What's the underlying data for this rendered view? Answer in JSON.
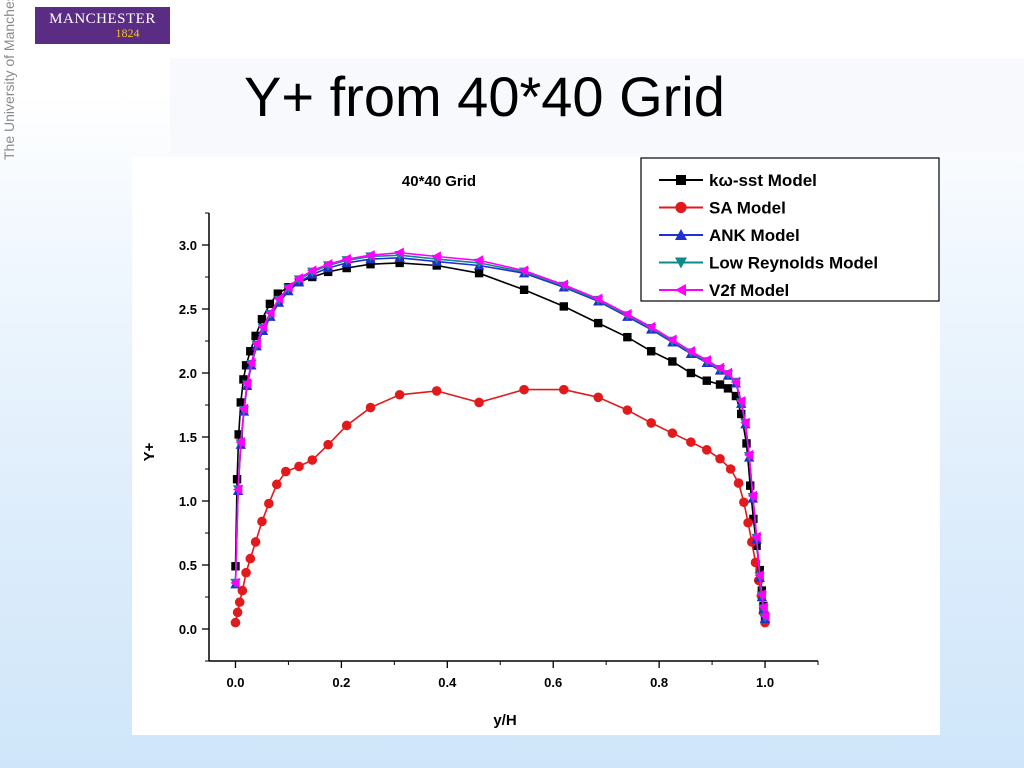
{
  "logo": {
    "name": "MANCHESTER",
    "year": "1824"
  },
  "sidebar_text": "The University of Manchester",
  "slide_title": "Y+ from 40*40 Grid",
  "chart_data": {
    "type": "line",
    "title": "40*40 Grid",
    "xlabel": "y/H",
    "ylabel": "Y+",
    "xlim": [
      -0.05,
      1.1
    ],
    "ylim": [
      -0.25,
      3.25
    ],
    "xticks": [
      "0.0",
      "0.2",
      "0.4",
      "0.6",
      "0.8",
      "1.0"
    ],
    "yticks": [
      "0.0",
      "0.5",
      "1.0",
      "1.5",
      "2.0",
      "2.5",
      "3.0"
    ],
    "legend_position": "top-right",
    "series": [
      {
        "name": "kω-sst Model",
        "color": "#000000",
        "marker": "square",
        "x": [
          0.0,
          0.003,
          0.006,
          0.01,
          0.015,
          0.02,
          0.028,
          0.038,
          0.05,
          0.065,
          0.08,
          0.1,
          0.12,
          0.145,
          0.175,
          0.21,
          0.255,
          0.31,
          0.38,
          0.46,
          0.545,
          0.62,
          0.685,
          0.74,
          0.785,
          0.825,
          0.86,
          0.89,
          0.915,
          0.93,
          0.945,
          0.955,
          0.965,
          0.972,
          0.978,
          0.984,
          0.99,
          0.994,
          0.997,
          1.0
        ],
        "y": [
          0.49,
          1.17,
          1.52,
          1.77,
          1.95,
          2.06,
          2.17,
          2.29,
          2.42,
          2.54,
          2.62,
          2.67,
          2.71,
          2.75,
          2.79,
          2.82,
          2.85,
          2.86,
          2.84,
          2.78,
          2.65,
          2.52,
          2.39,
          2.28,
          2.17,
          2.09,
          2.0,
          1.94,
          1.91,
          1.88,
          1.82,
          1.68,
          1.45,
          1.12,
          0.86,
          0.65,
          0.46,
          0.3,
          0.18,
          0.09
        ]
      },
      {
        "name": "SA Model",
        "color": "#e31a1c",
        "marker": "circle",
        "x": [
          0.0,
          0.004,
          0.008,
          0.013,
          0.02,
          0.028,
          0.038,
          0.05,
          0.063,
          0.078,
          0.095,
          0.12,
          0.145,
          0.175,
          0.21,
          0.255,
          0.31,
          0.38,
          0.46,
          0.545,
          0.62,
          0.685,
          0.74,
          0.785,
          0.825,
          0.86,
          0.89,
          0.915,
          0.935,
          0.95,
          0.96,
          0.968,
          0.975,
          0.982,
          0.988,
          0.993,
          0.997,
          1.0
        ],
        "y": [
          0.05,
          0.13,
          0.21,
          0.3,
          0.44,
          0.55,
          0.68,
          0.84,
          0.98,
          1.13,
          1.23,
          1.27,
          1.32,
          1.44,
          1.59,
          1.73,
          1.83,
          1.86,
          1.77,
          1.87,
          1.87,
          1.81,
          1.71,
          1.61,
          1.53,
          1.46,
          1.4,
          1.33,
          1.25,
          1.14,
          0.99,
          0.83,
          0.68,
          0.52,
          0.38,
          0.26,
          0.13,
          0.05
        ]
      },
      {
        "name": "ANK Model",
        "color": "#1f2fd0",
        "marker": "triangle-up",
        "x": [
          0.0,
          0.005,
          0.01,
          0.016,
          0.022,
          0.03,
          0.04,
          0.052,
          0.066,
          0.082,
          0.1,
          0.12,
          0.145,
          0.175,
          0.21,
          0.255,
          0.31,
          0.38,
          0.46,
          0.545,
          0.62,
          0.685,
          0.74,
          0.785,
          0.825,
          0.86,
          0.89,
          0.915,
          0.93,
          0.945,
          0.955,
          0.963,
          0.97,
          0.977,
          0.984,
          0.99,
          0.994,
          0.997,
          1.0
        ],
        "y": [
          0.35,
          1.08,
          1.44,
          1.7,
          1.9,
          2.06,
          2.21,
          2.33,
          2.44,
          2.55,
          2.64,
          2.71,
          2.77,
          2.82,
          2.86,
          2.89,
          2.9,
          2.87,
          2.84,
          2.78,
          2.67,
          2.56,
          2.44,
          2.34,
          2.24,
          2.15,
          2.08,
          2.02,
          1.98,
          1.92,
          1.76,
          1.6,
          1.34,
          1.02,
          0.7,
          0.4,
          0.25,
          0.15,
          0.08
        ]
      },
      {
        "name": "Low Reynolds Model",
        "color": "#0f8a8a",
        "marker": "triangle-down",
        "x": [
          0.0,
          0.005,
          0.01,
          0.016,
          0.022,
          0.03,
          0.04,
          0.052,
          0.066,
          0.082,
          0.1,
          0.12,
          0.145,
          0.175,
          0.21,
          0.255,
          0.31,
          0.38,
          0.46,
          0.545,
          0.62,
          0.685,
          0.74,
          0.785,
          0.825,
          0.86,
          0.89,
          0.915,
          0.93,
          0.945,
          0.955,
          0.963,
          0.97,
          0.977,
          0.984,
          0.99,
          0.994,
          0.997,
          1.0
        ],
        "y": [
          0.36,
          1.09,
          1.45,
          1.71,
          1.91,
          2.07,
          2.22,
          2.35,
          2.46,
          2.57,
          2.66,
          2.73,
          2.79,
          2.84,
          2.88,
          2.91,
          2.92,
          2.89,
          2.86,
          2.79,
          2.68,
          2.57,
          2.45,
          2.35,
          2.25,
          2.16,
          2.09,
          2.03,
          1.99,
          1.93,
          1.77,
          1.61,
          1.35,
          1.03,
          0.71,
          0.41,
          0.26,
          0.16,
          0.09
        ]
      },
      {
        "name": "V2f Model",
        "color": "#ff00ff",
        "marker": "triangle-left",
        "x": [
          0.0,
          0.005,
          0.01,
          0.016,
          0.022,
          0.03,
          0.04,
          0.052,
          0.066,
          0.082,
          0.1,
          0.12,
          0.145,
          0.175,
          0.21,
          0.255,
          0.31,
          0.38,
          0.46,
          0.545,
          0.62,
          0.685,
          0.74,
          0.785,
          0.825,
          0.86,
          0.89,
          0.915,
          0.93,
          0.945,
          0.955,
          0.963,
          0.97,
          0.977,
          0.984,
          0.99,
          0.994,
          0.997,
          1.0
        ],
        "y": [
          0.36,
          1.09,
          1.46,
          1.72,
          1.92,
          2.08,
          2.23,
          2.36,
          2.47,
          2.58,
          2.67,
          2.74,
          2.8,
          2.85,
          2.89,
          2.92,
          2.94,
          2.91,
          2.88,
          2.8,
          2.69,
          2.58,
          2.46,
          2.36,
          2.26,
          2.17,
          2.1,
          2.04,
          2.0,
          1.93,
          1.78,
          1.61,
          1.36,
          1.04,
          0.72,
          0.42,
          0.27,
          0.17,
          0.1
        ]
      }
    ]
  }
}
